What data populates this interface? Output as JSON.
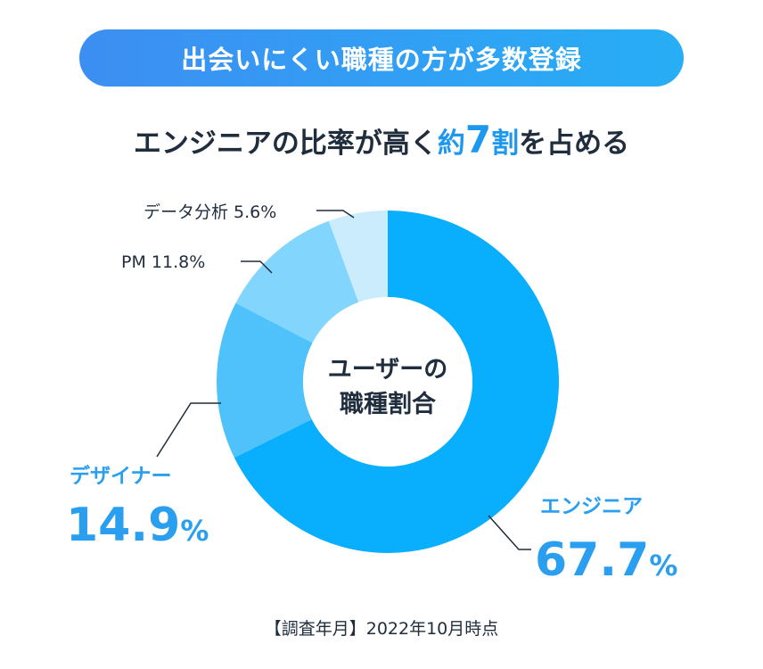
{
  "banner": {
    "text": "出会いにくい職種の方が多数登録"
  },
  "headline": {
    "part1": "エンジニアの比率が高く",
    "accent1": "約",
    "accent_big": "7",
    "accent2": "割",
    "part2": "を占める"
  },
  "chart_data": {
    "type": "pie",
    "style": "donut",
    "center_label": [
      "ユーザーの",
      "職種割合"
    ],
    "slices": [
      {
        "name": "エンジニア",
        "value": 67.7,
        "value_text": "67.7",
        "unit": "%",
        "color": "#09aefc"
      },
      {
        "name": "デザイナー",
        "value": 14.9,
        "value_text": "14.9",
        "unit": "%",
        "color": "#4fc2fb"
      },
      {
        "name": "PM",
        "value": 11.8,
        "label": "PM 11.8%",
        "color": "#82d5fc"
      },
      {
        "name": "データ分析",
        "value": 5.6,
        "label": "データ分析 5.6%",
        "color": "#cbecfd"
      }
    ]
  },
  "footnote": "【調査年月】2022年10月時点"
}
